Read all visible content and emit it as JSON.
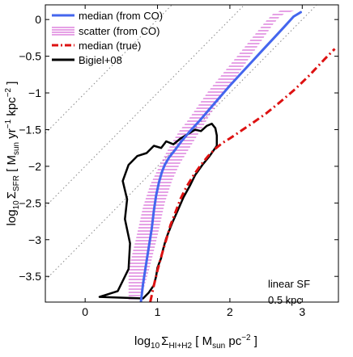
{
  "chart_data": {
    "type": "line",
    "xlabel": {
      "prefix": "log",
      "prefix_sub": "10",
      "symbol": "Σ",
      "symbol_sub": "HI+H2",
      "open": " [ M",
      "unit_sub": "sun",
      "unit_rest": " pc",
      "unit_sup": "−2",
      "close": " ]"
    },
    "ylabel": {
      "prefix": "log",
      "prefix_sub": "10",
      "symbol": "Σ",
      "symbol_sub": "SFR",
      "open": " [ M",
      "unit_sub": "sun",
      "unit_mid": " yr",
      "unit_mid_sup": "−1",
      "unit_rest": " kpc",
      "unit_sup": "−2",
      "close": " ]"
    },
    "xlim": [
      -0.55,
      3.5
    ],
    "ylim": [
      -3.85,
      0.2
    ],
    "xticks": [
      {
        "value": 0,
        "label": "0"
      },
      {
        "value": 1,
        "label": "1"
      },
      {
        "value": 2,
        "label": "2"
      },
      {
        "value": 3,
        "label": "3"
      }
    ],
    "yticks": [
      {
        "value": 0,
        "label": "0"
      },
      {
        "value": -0.5,
        "label": "−0.5"
      },
      {
        "value": -1,
        "label": "−1"
      },
      {
        "value": -1.5,
        "label": "−1.5"
      },
      {
        "value": -2,
        "label": "−2"
      },
      {
        "value": -2.5,
        "label": "−2.5"
      },
      {
        "value": -3,
        "label": "−3"
      },
      {
        "value": -3.5,
        "label": "−3.5"
      }
    ],
    "grid": false,
    "legend_position": "top-left",
    "series": [
      {
        "name": "median (from CO)",
        "style": "solid",
        "color": "#4466ee",
        "x": [
          0.77,
          0.8,
          0.84,
          0.88,
          0.92,
          0.95,
          0.98,
          1.02,
          1.06,
          1.1,
          1.16,
          1.24,
          1.33,
          1.45,
          1.58,
          1.72,
          1.86,
          2.0,
          2.15,
          2.3,
          2.45,
          2.6,
          2.75,
          2.88,
          2.98
        ],
        "y": [
          -3.85,
          -3.6,
          -3.35,
          -3.1,
          -2.85,
          -2.6,
          -2.4,
          -2.22,
          -2.08,
          -1.98,
          -1.88,
          -1.78,
          -1.66,
          -1.52,
          -1.38,
          -1.22,
          -1.06,
          -0.9,
          -0.74,
          -0.58,
          -0.42,
          -0.26,
          -0.1,
          0.04,
          0.1
        ]
      },
      {
        "name": "scatter (from CO)",
        "style": "band",
        "color": "#cc44cc",
        "x": [
          0.6,
          0.7,
          0.8,
          0.9,
          1.0,
          1.1,
          1.2,
          1.3,
          1.4,
          1.5,
          1.6,
          1.7,
          1.8,
          1.9,
          2.0,
          2.1,
          2.2,
          2.3,
          2.4,
          2.5,
          2.6,
          2.7,
          2.8,
          2.9
        ],
        "lo": [
          -3.85,
          -3.85,
          -3.7,
          -3.35,
          -2.95,
          -2.5,
          -2.2,
          -1.98,
          -1.82,
          -1.66,
          -1.5,
          -1.34,
          -1.18,
          -1.04,
          -0.9,
          -0.76,
          -0.62,
          -0.48,
          -0.34,
          -0.2,
          -0.06,
          0.05,
          0.1,
          0.12
        ],
        "hi": [
          -3.4,
          -3.0,
          -2.55,
          -2.25,
          -2.05,
          -1.85,
          -1.68,
          -1.52,
          -1.4,
          -1.26,
          -1.12,
          -0.98,
          -0.86,
          -0.74,
          -0.62,
          -0.5,
          -0.38,
          -0.26,
          -0.14,
          -0.02,
          0.08,
          0.12,
          0.12,
          0.12
        ]
      },
      {
        "name": "median (true)",
        "style": "dashdot",
        "color": "#dd1111",
        "x": [
          0.9,
          0.95,
          1.0,
          1.06,
          1.12,
          1.18,
          1.25,
          1.32,
          1.4,
          1.5,
          1.6,
          1.7,
          1.8,
          1.9,
          2.0,
          2.15,
          2.3,
          2.5,
          2.7,
          2.9,
          3.1,
          3.3,
          3.45
        ],
        "y": [
          -3.85,
          -3.62,
          -3.42,
          -3.2,
          -3.0,
          -2.8,
          -2.62,
          -2.44,
          -2.28,
          -2.12,
          -1.98,
          -1.86,
          -1.76,
          -1.68,
          -1.62,
          -1.52,
          -1.42,
          -1.28,
          -1.12,
          -0.95,
          -0.76,
          -0.55,
          -0.4
        ]
      },
      {
        "name": "Bigiel+08",
        "style": "contour",
        "color": "#000000",
        "x": [
          0.2,
          0.45,
          0.6,
          0.62,
          0.55,
          0.58,
          0.52,
          0.6,
          0.72,
          0.85,
          0.95,
          1.05,
          1.12,
          1.22,
          1.32,
          1.42,
          1.52,
          1.6,
          1.68,
          1.75,
          1.8,
          1.82,
          1.82,
          1.72,
          1.62,
          1.52,
          1.45,
          1.36,
          1.28,
          1.2,
          1.12,
          1.08,
          1.05,
          1.0,
          0.98,
          0.95,
          0.88,
          0.8,
          0.2
        ],
        "y": [
          -3.78,
          -3.7,
          -3.4,
          -3.05,
          -2.72,
          -2.45,
          -2.2,
          -1.98,
          -1.86,
          -1.82,
          -1.72,
          -1.75,
          -1.66,
          -1.7,
          -1.62,
          -1.56,
          -1.5,
          -1.52,
          -1.45,
          -1.42,
          -1.48,
          -1.58,
          -1.72,
          -1.86,
          -1.98,
          -2.12,
          -2.26,
          -2.42,
          -2.6,
          -2.78,
          -2.98,
          -3.12,
          -3.25,
          -3.38,
          -3.5,
          -3.62,
          -3.72,
          -3.8,
          -3.78
        ]
      }
    ],
    "reference_lines": [
      {
        "style": "dotted",
        "color": "#888888",
        "slope": 1,
        "intercept": -1
      },
      {
        "style": "dotted",
        "color": "#888888",
        "slope": 1,
        "intercept": -2
      },
      {
        "style": "dotted",
        "color": "#888888",
        "slope": 1,
        "intercept": -3
      }
    ],
    "annotation": [
      "linear SF",
      "0.5 kpc"
    ]
  }
}
